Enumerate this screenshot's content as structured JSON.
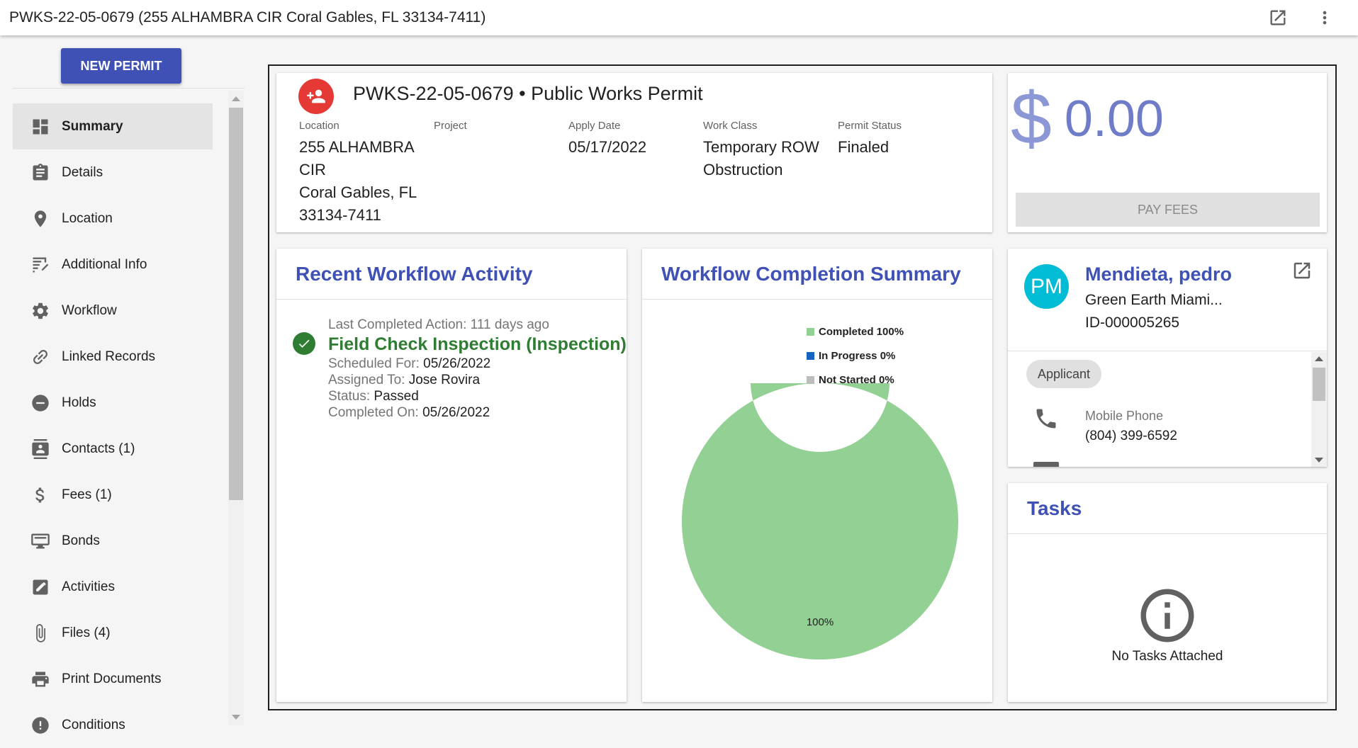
{
  "window": {
    "title": "PWKS-22-05-0679 (255 ALHAMBRA CIR Coral Gables, FL 33134-7411)"
  },
  "sidebar": {
    "new_permit_label": "NEW PERMIT",
    "items": [
      {
        "label": "Summary",
        "icon": "summary-icon",
        "active": true
      },
      {
        "label": "Details",
        "icon": "clipboard-icon"
      },
      {
        "label": "Location",
        "icon": "map-pin-icon"
      },
      {
        "label": "Additional Info",
        "icon": "edit-note-icon"
      },
      {
        "label": "Workflow",
        "icon": "gear-icon"
      },
      {
        "label": "Linked Records",
        "icon": "link-icon"
      },
      {
        "label": "Holds",
        "icon": "minus-circle-icon"
      },
      {
        "label": "Contacts (1)",
        "icon": "contact-card-icon"
      },
      {
        "label": "Fees (1)",
        "icon": "dollar-icon"
      },
      {
        "label": "Bonds",
        "icon": "bond-icon"
      },
      {
        "label": "Activities",
        "icon": "pencil-box-icon"
      },
      {
        "label": "Files (4)",
        "icon": "paperclip-icon"
      },
      {
        "label": "Print Documents",
        "icon": "printer-icon"
      },
      {
        "label": "Conditions",
        "icon": "alert-circle-icon"
      }
    ]
  },
  "permit": {
    "title": "PWKS-22-05-0679 • Public Works Permit",
    "fields": [
      {
        "label": "Location",
        "lines": [
          "255 ALHAMBRA",
          "CIR",
          "Coral Gables, FL",
          "33134-7411"
        ]
      },
      {
        "label": "Project",
        "lines": []
      },
      {
        "label": "Apply Date",
        "lines": [
          "05/17/2022"
        ]
      },
      {
        "label": "Work Class",
        "lines": [
          "Temporary ROW",
          "Obstruction"
        ]
      },
      {
        "label": "Permit Status",
        "lines": [
          "Finaled"
        ]
      }
    ]
  },
  "fees": {
    "currency_symbol": "$",
    "amount": "0.00",
    "pay_label": "PAY FEES"
  },
  "activity": {
    "heading": "Recent Workflow Activity",
    "last_completed": "Last Completed Action: 111 days ago",
    "title": "Field Check Inspection (Inspection)",
    "scheduled_label": "Scheduled For: ",
    "scheduled_value": "05/26/2022",
    "assigned_label": "Assigned To: ",
    "assigned_value": "Jose Rovira",
    "status_label": "Status: ",
    "status_value": "Passed",
    "completed_label": "Completed On: ",
    "completed_value": "05/26/2022"
  },
  "completion": {
    "heading": "Workflow Completion Summary",
    "chart_data": {
      "type": "pie",
      "categories": [
        "Completed",
        "In Progress",
        "Not Started"
      ],
      "values": [
        100,
        0,
        0
      ],
      "legend": [
        "Completed 100%",
        "In Progress 0%",
        "Not Started 0%"
      ],
      "colors": [
        "#93d094",
        "#1565c0",
        "#bdbdbd"
      ],
      "data_labels": [
        "100%"
      ],
      "legend_position": "top"
    }
  },
  "contact": {
    "initials": "PM",
    "name": "Mendieta, pedro",
    "company": "Green Earth Miami...",
    "id": "ID-000005265",
    "role": "Applicant",
    "phone_label": "Mobile Phone",
    "phone_value": "(804) 399-6592"
  },
  "tasks": {
    "heading": "Tasks",
    "empty_text": "No Tasks Attached"
  },
  "colors": {
    "primary": "#3f51b5",
    "success": "#2e7d32",
    "avatar_red": "#e53935",
    "avatar_cyan": "#00bcd4"
  }
}
